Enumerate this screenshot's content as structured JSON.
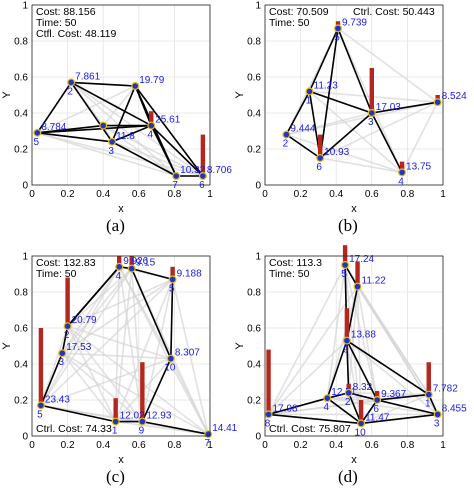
{
  "chart_data": [
    {
      "type": "network",
      "xlabel": "x",
      "ylabel": "Y",
      "xlim": [
        0,
        1
      ],
      "ylim": [
        0,
        1
      ],
      "xticks": [
        "0",
        "0.2",
        "0.4",
        "0.6",
        "0.8",
        "1"
      ],
      "yticks": [
        "0",
        "0.2",
        "0.4",
        "0.6",
        "0.8",
        "1"
      ],
      "grid": true,
      "caption": "(a)",
      "info": [
        "Cost: 88.156",
        "Time: 50",
        "Ctfl. Cost: 48.119"
      ],
      "nodes": [
        {
          "id": "2",
          "x": 0.22,
          "y": 0.57,
          "label": "7.861",
          "bar": 0
        },
        {
          "id": "",
          "x": 0.58,
          "y": 0.55,
          "label": "19.79",
          "bar": 0
        },
        {
          "id": "5",
          "x": 0.03,
          "y": 0.29,
          "label": "8.784",
          "bar": 0
        },
        {
          "id": "3",
          "x": 0.45,
          "y": 0.24,
          "label": "11.8",
          "bar": 0
        },
        {
          "id": "4",
          "x": 0.67,
          "y": 0.33,
          "label": "25.61",
          "bar": 0.08
        },
        {
          "id": "",
          "x": 0.4,
          "y": 0.33,
          "label": "",
          "bar": 0
        },
        {
          "id": "7",
          "x": 0.81,
          "y": 0.05,
          "label": "10.32",
          "bar": 0
        },
        {
          "id": "6",
          "x": 0.96,
          "y": 0.05,
          "label": "8.706",
          "bar": 0.23
        }
      ],
      "edges": [
        [
          0,
          1
        ],
        [
          0,
          2
        ],
        [
          0,
          3
        ],
        [
          0,
          4
        ],
        [
          1,
          3
        ],
        [
          1,
          4
        ],
        [
          1,
          6
        ],
        [
          1,
          7
        ],
        [
          2,
          3
        ],
        [
          2,
          4
        ],
        [
          2,
          5
        ],
        [
          3,
          4
        ],
        [
          3,
          6
        ],
        [
          4,
          6
        ],
        [
          4,
          7
        ],
        [
          6,
          7
        ],
        [
          5,
          4
        ]
      ]
    },
    {
      "type": "network",
      "xlabel": "x",
      "ylabel": "Y",
      "xlim": [
        0,
        1
      ],
      "ylim": [
        0,
        1
      ],
      "xticks": [
        "0",
        "0.2",
        "0.4",
        "0.6",
        "0.8",
        "1"
      ],
      "yticks": [
        "0",
        "0.2",
        "0.4",
        "0.6",
        "0.8",
        "1"
      ],
      "grid": true,
      "caption": "(b)",
      "info": [
        "Cost: 70.509",
        "Time: 50",
        "Ctrl. Cost: 50.443"
      ],
      "nodes": [
        {
          "id": "5",
          "x": 0.41,
          "y": 0.87,
          "label": "9.739",
          "bar": 0.04
        },
        {
          "id": "1",
          "x": 0.25,
          "y": 0.52,
          "label": "11.23",
          "bar": 0
        },
        {
          "id": "2",
          "x": 0.12,
          "y": 0.28,
          "label": "9.444",
          "bar": 0
        },
        {
          "id": "6",
          "x": 0.31,
          "y": 0.15,
          "label": "10.93",
          "bar": 0.13
        },
        {
          "id": "3",
          "x": 0.6,
          "y": 0.4,
          "label": "17.03",
          "bar": 0.25
        },
        {
          "id": "",
          "x": 0.97,
          "y": 0.46,
          "label": "8.524",
          "bar": 0.04
        },
        {
          "id": "4",
          "x": 0.77,
          "y": 0.07,
          "label": "13.75",
          "bar": 0.06
        }
      ],
      "edges": [
        [
          0,
          1
        ],
        [
          0,
          4
        ],
        [
          1,
          2
        ],
        [
          1,
          3
        ],
        [
          1,
          4
        ],
        [
          2,
          3
        ],
        [
          3,
          4
        ],
        [
          4,
          5
        ],
        [
          4,
          6
        ],
        [
          0,
          3
        ]
      ]
    },
    {
      "type": "network",
      "xlabel": "x",
      "ylabel": "Y",
      "xlim": [
        0,
        1
      ],
      "ylim": [
        0,
        1
      ],
      "xticks": [
        "0",
        "0.2",
        "0.4",
        "0.6",
        "0.8",
        "1"
      ],
      "yticks": [
        "0",
        "0.2",
        "0.4",
        "0.6",
        "0.8",
        "1"
      ],
      "grid": true,
      "caption": "(c)",
      "info": [
        "Cost: 132.83",
        "Time: 50",
        "Ctrl. Cost: 74.33"
      ],
      "nodes": [
        {
          "id": "4",
          "x": 0.49,
          "y": 0.94,
          "label": "9.926",
          "bar": 0.06
        },
        {
          "id": "",
          "x": 0.56,
          "y": 0.93,
          "label": "9.15",
          "bar": 0.07
        },
        {
          "id": "5",
          "x": 0.79,
          "y": 0.87,
          "label": "9.188",
          "bar": 0.07
        },
        {
          "id": "2",
          "x": 0.2,
          "y": 0.61,
          "label": "20.79",
          "bar": 0.27
        },
        {
          "id": "3",
          "x": 0.17,
          "y": 0.46,
          "label": "17.53",
          "bar": 0
        },
        {
          "id": "10",
          "x": 0.78,
          "y": 0.43,
          "label": "8.307",
          "bar": 0
        },
        {
          "id": "5",
          "x": 0.05,
          "y": 0.17,
          "label": "23.43",
          "bar": 0.43
        },
        {
          "id": "1",
          "x": 0.47,
          "y": 0.08,
          "label": "12.02",
          "bar": 0.13
        },
        {
          "id": "9",
          "x": 0.62,
          "y": 0.08,
          "label": "12.93",
          "bar": 0.33
        },
        {
          "id": "7",
          "x": 0.99,
          "y": 0.01,
          "label": "14.41",
          "bar": 0
        }
      ],
      "edges": [
        [
          0,
          1
        ],
        [
          0,
          3
        ],
        [
          1,
          2
        ],
        [
          2,
          5
        ],
        [
          3,
          4
        ],
        [
          4,
          6
        ],
        [
          6,
          7
        ],
        [
          7,
          8
        ],
        [
          8,
          5
        ],
        [
          8,
          9
        ],
        [
          5,
          1
        ],
        [
          3,
          0
        ]
      ]
    },
    {
      "type": "network",
      "xlabel": "x",
      "ylabel": "Y",
      "xlim": [
        0,
        1
      ],
      "ylim": [
        0,
        1
      ],
      "xticks": [
        "0",
        "0.2",
        "0.4",
        "0.6",
        "0.8",
        "1"
      ],
      "yticks": [
        "0",
        "0.2",
        "0.4",
        "0.6",
        "0.8",
        "1"
      ],
      "grid": true,
      "caption": "(d)",
      "info": [
        "Cost: 113.3",
        "Time: 50",
        "Ctrl. Cost: 75.807"
      ],
      "nodes": [
        {
          "id": "5",
          "x": 0.45,
          "y": 0.95,
          "label": "17.24",
          "bar": 0.11
        },
        {
          "id": "",
          "x": 0.52,
          "y": 0.83,
          "label": "11.22",
          "bar": 0.14
        },
        {
          "id": "9",
          "x": 0.46,
          "y": 0.53,
          "label": "13.88",
          "bar": 0.18
        },
        {
          "id": "4",
          "x": 0.35,
          "y": 0.21,
          "label": "12.51",
          "bar": 0
        },
        {
          "id": "2",
          "x": 0.47,
          "y": 0.24,
          "label": "8.32",
          "bar": 0.05
        },
        {
          "id": "6",
          "x": 0.63,
          "y": 0.2,
          "label": "9.367",
          "bar": 0.05
        },
        {
          "id": "10",
          "x": 0.54,
          "y": 0.07,
          "label": "11.47",
          "bar": 0.13
        },
        {
          "id": "1",
          "x": 0.92,
          "y": 0.23,
          "label": "7.782",
          "bar": 0.18
        },
        {
          "id": "3",
          "x": 0.97,
          "y": 0.12,
          "label": "8.455",
          "bar": 0
        },
        {
          "id": "8",
          "x": 0.02,
          "y": 0.12,
          "label": "17.98",
          "bar": 0.36
        }
      ],
      "edges": [
        [
          0,
          1
        ],
        [
          0,
          2
        ],
        [
          1,
          2
        ],
        [
          2,
          3
        ],
        [
          2,
          4
        ],
        [
          2,
          5
        ],
        [
          2,
          7
        ],
        [
          3,
          4
        ],
        [
          4,
          5
        ],
        [
          4,
          6
        ],
        [
          5,
          7
        ],
        [
          5,
          6
        ],
        [
          6,
          8
        ],
        [
          7,
          8
        ],
        [
          3,
          9
        ],
        [
          9,
          6
        ],
        [
          5,
          8
        ],
        [
          3,
          6
        ]
      ]
    }
  ]
}
